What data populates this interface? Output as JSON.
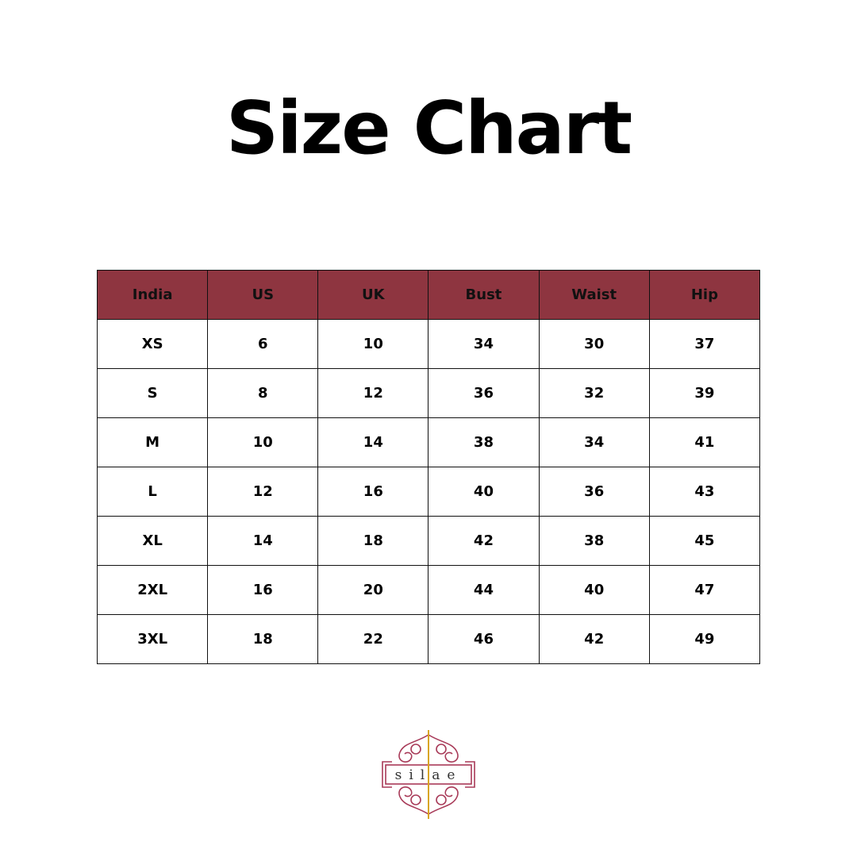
{
  "title": "Size Chart",
  "table": {
    "headers": [
      "India",
      "US",
      "UK",
      "Bust",
      "Waist",
      "Hip"
    ],
    "rows": [
      [
        "XS",
        "6",
        "10",
        "34",
        "30",
        "37"
      ],
      [
        "S",
        "8",
        "12",
        "36",
        "32",
        "39"
      ],
      [
        "M",
        "10",
        "14",
        "38",
        "34",
        "41"
      ],
      [
        "L",
        "12",
        "16",
        "40",
        "36",
        "43"
      ],
      [
        "XL",
        "14",
        "18",
        "42",
        "38",
        "45"
      ],
      [
        "2XL",
        "16",
        "20",
        "44",
        "40",
        "47"
      ],
      [
        "3XL",
        "18",
        "22",
        "46",
        "42",
        "49"
      ]
    ]
  },
  "logo": {
    "text": "silae"
  },
  "colors": {
    "header_bg": "#8e3540",
    "logo_ornament": "#a83a58",
    "logo_needle": "#d9a520"
  }
}
